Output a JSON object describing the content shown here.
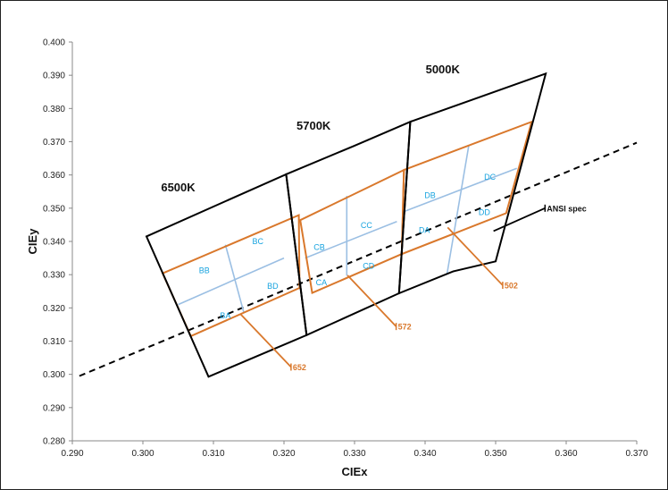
{
  "chart_data": {
    "type": "scatter",
    "xlabel": "CIEx",
    "ylabel": "CIEy",
    "xlim": [
      0.29,
      0.37
    ],
    "ylim": [
      0.28,
      0.4
    ],
    "grid": false,
    "x_ticks": [
      "0.290",
      "0.300",
      "0.310",
      "0.320",
      "0.330",
      "0.340",
      "0.350",
      "0.360",
      "0.370"
    ],
    "y_ticks": [
      "0.280",
      "0.290",
      "0.300",
      "0.310",
      "0.320",
      "0.330",
      "0.340",
      "0.350",
      "0.360",
      "0.370",
      "0.380",
      "0.390",
      "0.400"
    ],
    "colors": {
      "ansi": "#000000",
      "bin_outer": "#d9782c",
      "bin_inner": "#9bbfe3",
      "bin_text": "#17a3df",
      "callout_text": "#d9782c"
    },
    "ansi_regions": [
      {
        "name": "6500K",
        "points": [
          [
            0.3005,
            0.3415
          ],
          [
            0.3203,
            0.3602
          ],
          [
            0.3232,
            0.3118
          ],
          [
            0.3093,
            0.2993
          ]
        ]
      },
      {
        "name": "5700K",
        "points": [
          [
            0.3203,
            0.3602
          ],
          [
            0.3299,
            0.3687
          ],
          [
            0.3379,
            0.376
          ],
          [
            0.3363,
            0.3244
          ],
          [
            0.3232,
            0.3118
          ]
        ]
      },
      {
        "name": "5000K",
        "points": [
          [
            0.3379,
            0.376
          ],
          [
            0.3571,
            0.3905
          ],
          [
            0.35,
            0.334
          ],
          [
            0.344,
            0.331
          ],
          [
            0.3363,
            0.3244
          ]
        ]
      }
    ],
    "bin_quads": [
      {
        "name": "B",
        "points": [
          [
            0.3028,
            0.3304
          ],
          [
            0.3221,
            0.3479
          ],
          [
            0.3222,
            0.326
          ],
          [
            0.3068,
            0.3115
          ]
        ]
      },
      {
        "name": "C",
        "points": [
          [
            0.3223,
            0.3464
          ],
          [
            0.337,
            0.3615
          ],
          [
            0.3367,
            0.3362
          ],
          [
            0.324,
            0.3245
          ]
        ]
      },
      {
        "name": "D",
        "points": [
          [
            0.337,
            0.3615
          ],
          [
            0.3551,
            0.376
          ],
          [
            0.3515,
            0.3485
          ],
          [
            0.3367,
            0.3362
          ]
        ]
      }
    ],
    "bin_dividers": [
      [
        [
          0.305,
          0.321
        ],
        [
          0.32,
          0.335
        ]
      ],
      [
        [
          0.3117,
          0.339
        ],
        [
          0.3143,
          0.3186
        ]
      ],
      [
        [
          0.323,
          0.335
        ],
        [
          0.336,
          0.346
        ]
      ],
      [
        [
          0.3289,
          0.3537
        ],
        [
          0.3289,
          0.3297
        ]
      ],
      [
        [
          0.337,
          0.349
        ],
        [
          0.353,
          0.362
        ]
      ],
      [
        [
          0.3462,
          0.369
        ],
        [
          0.3431,
          0.3301
        ]
      ]
    ],
    "bin_labels": [
      {
        "text": "BB",
        "x": 0.3087,
        "y": 0.3304
      },
      {
        "text": "BC",
        "x": 0.3163,
        "y": 0.3392
      },
      {
        "text": "BA",
        "x": 0.3117,
        "y": 0.3169
      },
      {
        "text": "BD",
        "x": 0.3184,
        "y": 0.3258
      },
      {
        "text": "CB",
        "x": 0.325,
        "y": 0.3374
      },
      {
        "text": "CC",
        "x": 0.3317,
        "y": 0.344
      },
      {
        "text": "CA",
        "x": 0.3253,
        "y": 0.3268
      },
      {
        "text": "CD",
        "x": 0.332,
        "y": 0.3318
      },
      {
        "text": "DB",
        "x": 0.3407,
        "y": 0.353
      },
      {
        "text": "DC",
        "x": 0.3492,
        "y": 0.3585
      },
      {
        "text": "DA",
        "x": 0.3399,
        "y": 0.3425
      },
      {
        "text": "DD",
        "x": 0.3484,
        "y": 0.348
      }
    ],
    "cct_labels": [
      {
        "text": "6500K",
        "x": 0.305,
        "y": 0.3551
      },
      {
        "text": "5700K",
        "x": 0.3242,
        "y": 0.3736
      },
      {
        "text": "5000K",
        "x": 0.3425,
        "y": 0.3906
      }
    ],
    "black_body_line": {
      "points": [
        [
          0.291,
          0.2995
        ],
        [
          0.37,
          0.3697
        ]
      ]
    },
    "callouts": [
      {
        "text": "652",
        "from": [
          0.3138,
          0.3182
        ],
        "to": [
          0.321,
          0.3022
        ]
      },
      {
        "text": "572",
        "from": [
          0.329,
          0.3298
        ],
        "to": [
          0.3359,
          0.3144
        ]
      },
      {
        "text": "502",
        "from": [
          0.3432,
          0.3442
        ],
        "to": [
          0.351,
          0.3268
        ]
      },
      {
        "text": "ANSI spec",
        "from": [
          0.3497,
          0.3431
        ],
        "to": [
          0.357,
          0.35
        ]
      }
    ]
  }
}
